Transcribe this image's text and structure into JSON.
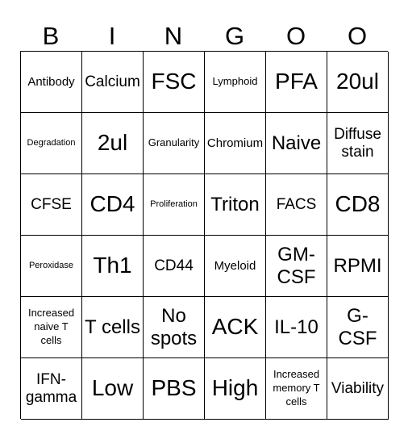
{
  "header": {
    "letters": [
      "B",
      "I",
      "N",
      "G",
      "O",
      "O"
    ]
  },
  "board": {
    "rows": [
      [
        "Antibody",
        "Calcium",
        "FSC",
        "Lymphoid",
        "PFA",
        "20ul"
      ],
      [
        "Degradation",
        "2ul",
        "Granularity",
        "Chromium",
        "Naive",
        "Diffuse stain"
      ],
      [
        "CFSE",
        "CD4",
        "Proliferation",
        "Triton",
        "FACS",
        "CD8"
      ],
      [
        "Peroxidase",
        "Th1",
        "CD44",
        "Myeloid",
        "GM-CSF",
        "RPMI"
      ],
      [
        "Increased naive T cells",
        "T cells",
        "No spots",
        "ACK",
        "IL-10",
        "G-CSF"
      ],
      [
        "IFN-gamma",
        "Low",
        "PBS",
        "High",
        "Increased memory T cells",
        "Viability"
      ]
    ]
  }
}
